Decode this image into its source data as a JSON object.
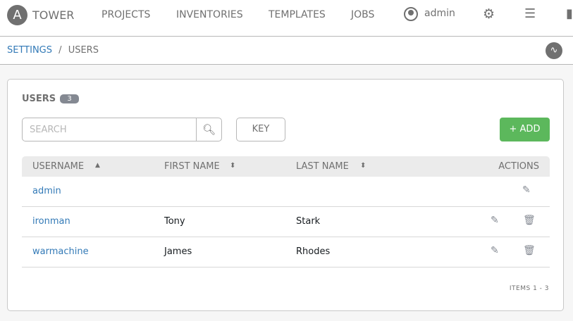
{
  "header": {
    "brand": "TOWER",
    "nav": [
      "PROJECTS",
      "INVENTORIES",
      "TEMPLATES",
      "JOBS"
    ],
    "user": "admin"
  },
  "breadcrumb": {
    "parent": "SETTINGS",
    "separator": "/",
    "current": "USERS"
  },
  "panel": {
    "title": "USERS",
    "count": "3",
    "search_placeholder": "SEARCH",
    "key_label": "KEY",
    "add_label": "+ ADD",
    "columns": [
      "USERNAME",
      "FIRST NAME",
      "LAST NAME",
      "ACTIONS"
    ],
    "rows": [
      {
        "username": "admin",
        "first": "",
        "last": ""
      },
      {
        "username": "ironman",
        "first": "Tony",
        "last": "Stark"
      },
      {
        "username": "warmachine",
        "first": "James",
        "last": "Rhodes"
      }
    ],
    "items": "ITEMS  1 - 3"
  },
  "colors": {
    "accent": "#337ab7",
    "add": "#5cb85c",
    "icon": "#707070"
  }
}
